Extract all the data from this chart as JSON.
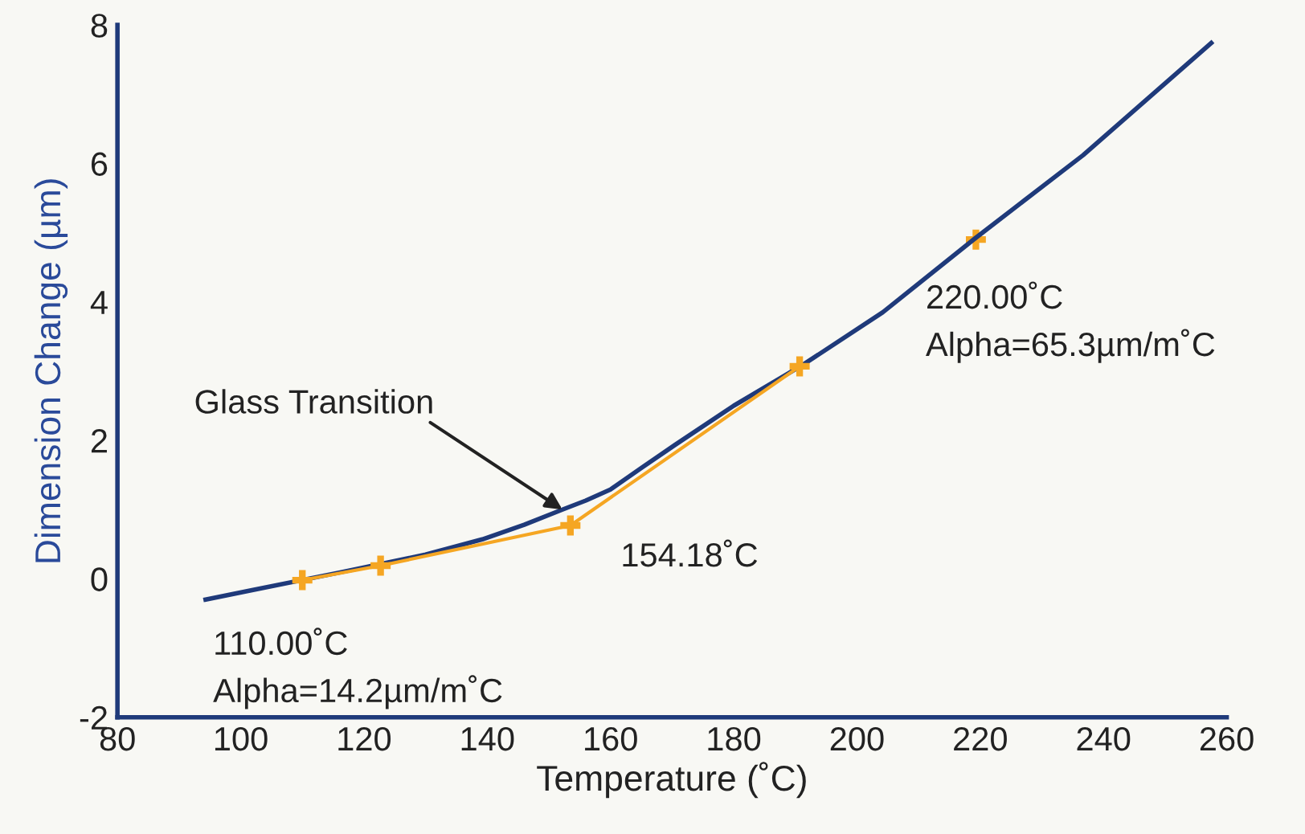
{
  "chart_data": {
    "type": "line",
    "xlabel": "Temperature (˚C)",
    "ylabel": "Dimension Change (µm)",
    "xlim": [
      80,
      260
    ],
    "xticks": [
      80,
      100,
      120,
      140,
      160,
      180,
      200,
      220,
      240,
      260
    ],
    "ylim": [
      -2,
      8
    ],
    "yticks": [
      {
        "value": -2,
        "label": "-2"
      },
      0,
      2,
      4,
      6,
      8
    ],
    "grid": false,
    "legend": false,
    "series": [
      {
        "color": "#1f3a7a",
        "marker": "none",
        "x": [
          94.3,
          102,
          116,
          130,
          139.2,
          146,
          152.2,
          156,
          160,
          165,
          170.4,
          180,
          191.2,
          204.2,
          219.2,
          236.7,
          257.5
        ],
        "values": [
          -0.3,
          -0.16,
          0.09,
          0.35,
          0.57,
          0.78,
          1.0,
          1.13,
          1.29,
          1.6,
          1.93,
          2.5,
          3.09,
          3.85,
          4.92,
          6.12,
          7.74
        ]
      },
      {
        "color": "#f5a623",
        "marker": "cross",
        "x": [
          110.0,
          122.7,
          153.5,
          190.7
        ],
        "values": [
          -0.02,
          0.19,
          0.77,
          3.07
        ]
      },
      {
        "color": "#f5a623",
        "type": "scatter",
        "marker": "cross",
        "x": [
          219.3
        ],
        "values": [
          4.9
        ]
      }
    ],
    "annotations": [
      {
        "text": "110.00˚C\nAlpha=14.2µm/m˚C",
        "x": 110.0,
        "y": -0.02
      },
      {
        "text": "154.18˚C",
        "x": 153.5,
        "y": 0.77
      },
      {
        "text": "220.00˚C\nAlpha=65.3µm/m˚C",
        "x": 219.3,
        "y": 4.9
      },
      {
        "text": "Glass Transition",
        "x": 152.2,
        "y": 1.0
      }
    ]
  }
}
